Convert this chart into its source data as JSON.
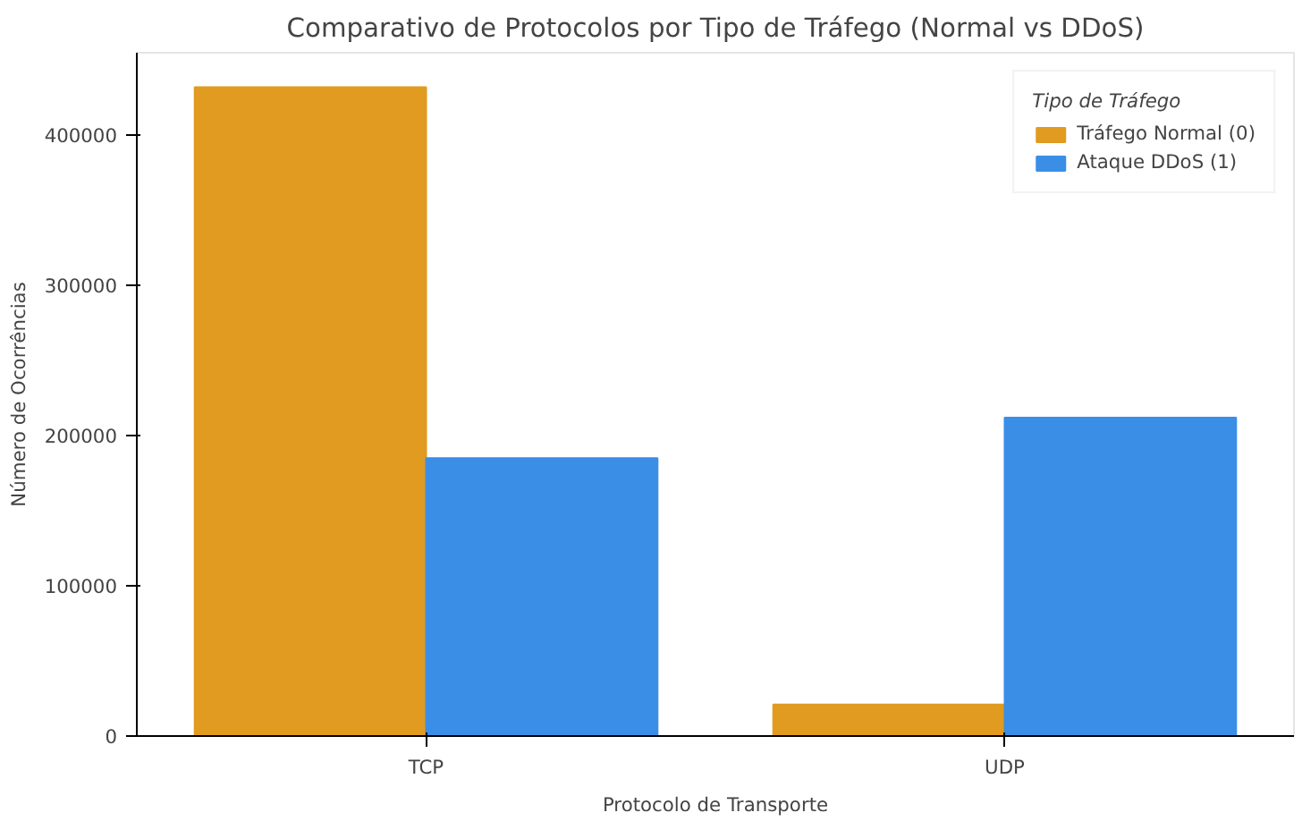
{
  "chart_data": {
    "type": "bar",
    "title": "Comparativo de Protocolos por Tipo de Tráfego (Normal vs DDoS)",
    "xlabel": "Protocolo de Transporte",
    "ylabel": "Número de Ocorrências",
    "legend_title": "Tipo de Tráfego",
    "categories": [
      "TCP",
      "UDP"
    ],
    "series": [
      {
        "name": "Tráfego Normal (0)",
        "color": "#e09b20",
        "values": [
          432000,
          21000
        ]
      },
      {
        "name": "Ataque DDoS (1)",
        "color": "#3a8ee6",
        "values": [
          185000,
          212000
        ]
      }
    ],
    "ylim": [
      0,
      455000
    ],
    "yticks": [
      0,
      100000,
      200000,
      300000,
      400000
    ],
    "grid": false,
    "legend": "top right"
  }
}
